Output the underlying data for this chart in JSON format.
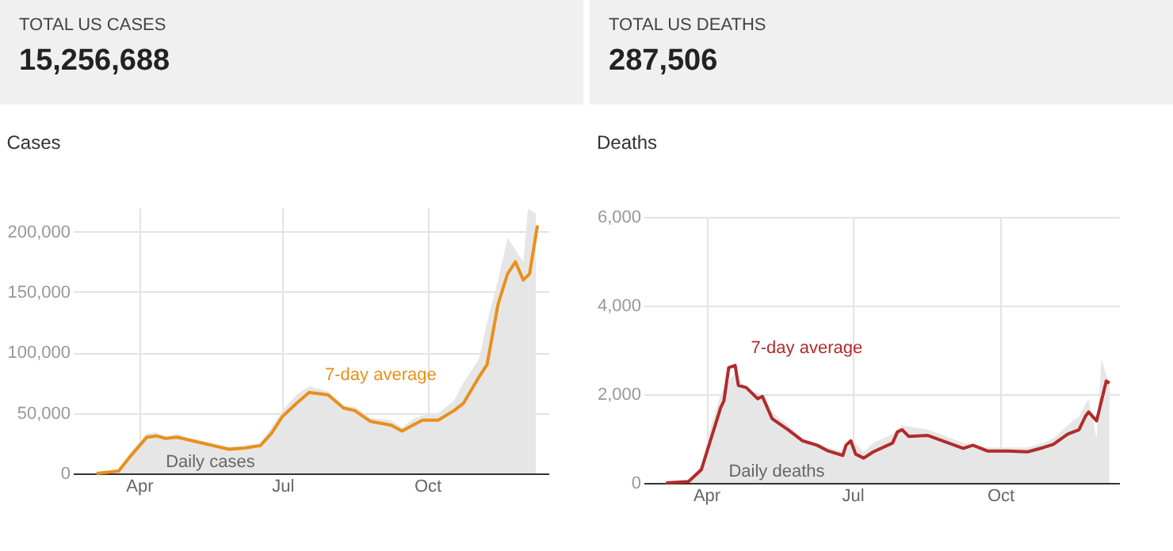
{
  "chart_data": [
    {
      "type": "other",
      "title": "TOTAL US CASES",
      "annotations": [
        "15,256,688"
      ]
    },
    {
      "type": "other",
      "title": "TOTAL US DEATHS",
      "annotations": [
        "287,506"
      ]
    },
    {
      "type": "line",
      "title": "Cases",
      "xlim": [
        "--02-19",
        "--12-17"
      ],
      "ylim": [
        0,
        220000
      ],
      "yticks": [
        0,
        {
          "value": 50000,
          "label": "50,000"
        },
        {
          "value": 100000,
          "label": "100,000"
        },
        {
          "value": 150000,
          "label": "150,000"
        },
        {
          "value": 200000,
          "label": "200,000"
        }
      ],
      "xticks": [
        {
          "value": "--04-01",
          "label": "Apr"
        },
        {
          "value": "--07-01",
          "label": "Jul"
        },
        {
          "value": "--10-01",
          "label": "Oct"
        }
      ],
      "grid": true,
      "series": [
        {
          "name": "Daily cases",
          "type": "area",
          "color": "#e6e6e6",
          "x": [
            "--03-05",
            "--03-19",
            "--03-27",
            "--04-06",
            "--04-12",
            "--04-18",
            "--04-25",
            "--05-05",
            "--05-18",
            "--05-28",
            "--06-07",
            "--06-17",
            "--06-24",
            "--07-01",
            "--07-10",
            "--07-18",
            "--07-30",
            "--08-09",
            "--08-16",
            "--08-26",
            "--09-08",
            "--09-15",
            "--09-22",
            "--09-28",
            "--10-08",
            "--10-18",
            "--10-24",
            "--11-03",
            "--11-08",
            "--11-15",
            "--11-21",
            "--11-26",
            "--12-01",
            "--12-04",
            "--12-09"
          ],
          "values": [
            0,
            3000,
            18000,
            33000,
            34000,
            30000,
            33000,
            28000,
            25000,
            22000,
            23000,
            25000,
            38000,
            52000,
            65000,
            72000,
            68000,
            56000,
            55000,
            46000,
            44000,
            38000,
            45000,
            48000,
            50000,
            60000,
            75000,
            95000,
            125000,
            160000,
            195000,
            185000,
            175000,
            219000,
            215000
          ]
        },
        {
          "name": "7-day average",
          "type": "line",
          "color": "#e8901c",
          "x": [
            "--03-05",
            "--03-19",
            "--03-27",
            "--04-06",
            "--04-12",
            "--04-18",
            "--04-25",
            "--05-05",
            "--05-18",
            "--05-28",
            "--06-07",
            "--06-17",
            "--06-24",
            "--07-01",
            "--07-10",
            "--07-18",
            "--07-30",
            "--08-09",
            "--08-16",
            "--08-26",
            "--09-08",
            "--09-15",
            "--09-22",
            "--09-28",
            "--10-08",
            "--10-18",
            "--10-24",
            "--11-03",
            "--11-08",
            "--11-15",
            "--11-21",
            "--11-26",
            "--12-01",
            "--12-05",
            "--12-10"
          ],
          "values": [
            0,
            2000,
            15000,
            30000,
            31000,
            29000,
            30000,
            27000,
            23000,
            20000,
            21000,
            23000,
            33000,
            47000,
            58000,
            67000,
            65000,
            54000,
            52000,
            43000,
            40000,
            35000,
            40000,
            44000,
            44000,
            52000,
            58000,
            80000,
            90000,
            140000,
            165000,
            175000,
            160000,
            165000,
            205000
          ]
        }
      ]
    },
    {
      "type": "line",
      "title": "Deaths",
      "xlim": [
        "--02-22",
        "--12-14"
      ],
      "ylim": [
        0,
        6000
      ],
      "yticks": [
        0,
        {
          "value": 2000,
          "label": "2,000"
        },
        {
          "value": 4000,
          "label": "4,000"
        },
        {
          "value": 6000,
          "label": "6,000"
        }
      ],
      "xticks": [
        {
          "value": "--04-01",
          "label": "Apr"
        },
        {
          "value": "--07-01",
          "label": "Jul"
        },
        {
          "value": "--10-01",
          "label": "Oct"
        }
      ],
      "grid": true,
      "series": [
        {
          "name": "Daily deaths",
          "type": "area",
          "color": "#e6e6e6",
          "x": [
            "--03-07",
            "--03-21",
            "--03-29",
            "--04-04",
            "--04-10",
            "--04-15",
            "--04-19",
            "--04-26",
            "--05-06",
            "--05-12",
            "--05-22",
            "--05-31",
            "--06-09",
            "--06-16",
            "--06-25",
            "--06-30",
            "--07-08",
            "--07-14",
            "--07-26",
            "--08-01",
            "--08-17",
            "--09-08",
            "--09-23",
            "--10-06",
            "--10-18",
            "--10-28",
            "--11-03",
            "--11-12",
            "--11-19",
            "--11-25",
            "--11-30",
            "--12-03",
            "--12-08"
          ],
          "values": [
            0,
            50,
            400,
            1300,
            2000,
            2300,
            2500,
            2100,
            2000,
            1600,
            1300,
            1000,
            900,
            800,
            700,
            1000,
            700,
            900,
            1100,
            1300,
            1200,
            900,
            800,
            800,
            800,
            900,
            1000,
            1300,
            1500,
            1900,
            1000,
            2800,
            2200
          ]
        },
        {
          "name": "7-day average",
          "type": "line",
          "color": "#b22b2b",
          "x": [
            "--03-07",
            "--03-21",
            "--03-29",
            "--04-04",
            "--04-10",
            "--04-12",
            "--04-15",
            "--04-19",
            "--04-21",
            "--04-26",
            "--05-03",
            "--05-06",
            "--05-12",
            "--05-22",
            "--05-31",
            "--06-09",
            "--06-16",
            "--06-25",
            "--06-27",
            "--06-30",
            "--07-03",
            "--07-08",
            "--07-14",
            "--07-26",
            "--07-29",
            "--08-01",
            "--08-05",
            "--08-17",
            "--09-08",
            "--09-14",
            "--09-23",
            "--10-06",
            "--10-18",
            "--10-28",
            "--11-03",
            "--11-12",
            "--11-19",
            "--11-23",
            "--11-25",
            "--11-30",
            "--12-06",
            "--12-08"
          ],
          "values": [
            0,
            30,
            300,
            1000,
            1700,
            1850,
            2600,
            2650,
            2200,
            2150,
            1900,
            1950,
            1450,
            1200,
            950,
            850,
            720,
            620,
            850,
            950,
            650,
            560,
            700,
            900,
            1150,
            1200,
            1050,
            1070,
            780,
            850,
            720,
            720,
            700,
            800,
            870,
            1100,
            1200,
            1500,
            1600,
            1400,
            2300,
            2250
          ]
        }
      ]
    }
  ]
}
